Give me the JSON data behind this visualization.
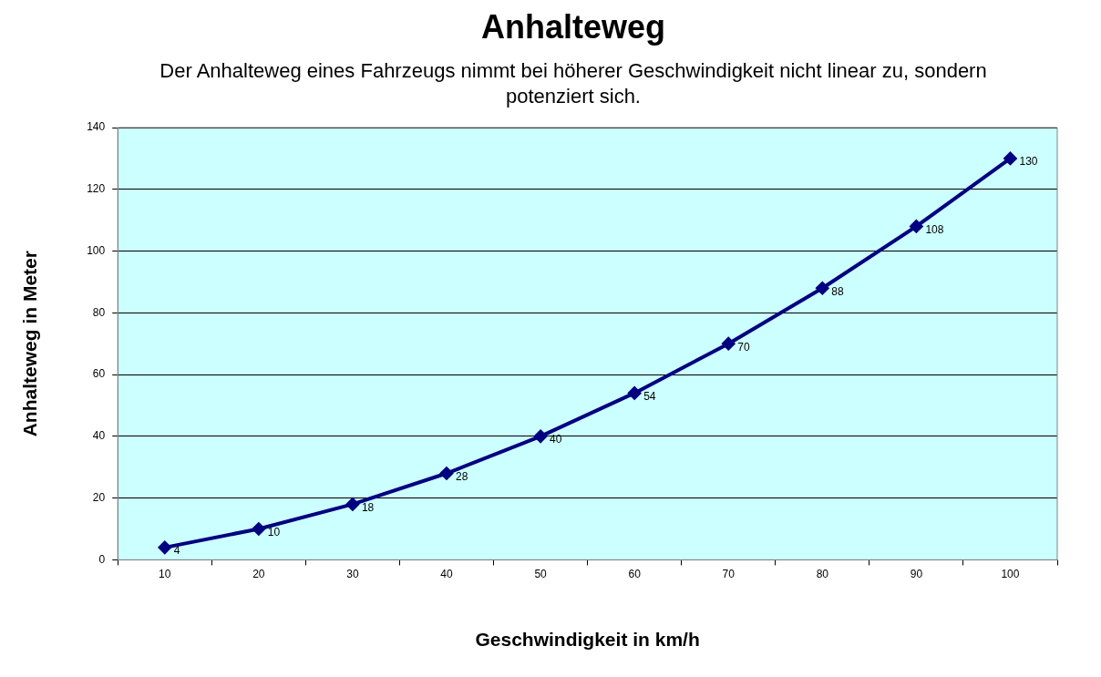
{
  "chart_data": {
    "type": "line",
    "title": "Anhalteweg",
    "subtitle": "Der Anhalteweg eines Fahrzeugs nimmt bei höherer Geschwindigkeit nicht linear zu, sondern potenziert sich.",
    "xlabel": "Geschwindigkeit in km/h",
    "ylabel": "Anhalteweg in Meter",
    "categories": [
      "10",
      "20",
      "30",
      "40",
      "50",
      "60",
      "70",
      "80",
      "90",
      "100"
    ],
    "series": [
      {
        "color": "#000080",
        "values": [
          4,
          10,
          18,
          28,
          40,
          54,
          70,
          88,
          108,
          130
        ]
      }
    ],
    "ylim": [
      0,
      140
    ],
    "yticks": [
      0,
      20,
      40,
      60,
      80,
      100,
      120,
      140
    ],
    "grid": "y",
    "legend": false,
    "marker": "diamond",
    "line_style": "solid",
    "data_labels": true
  }
}
